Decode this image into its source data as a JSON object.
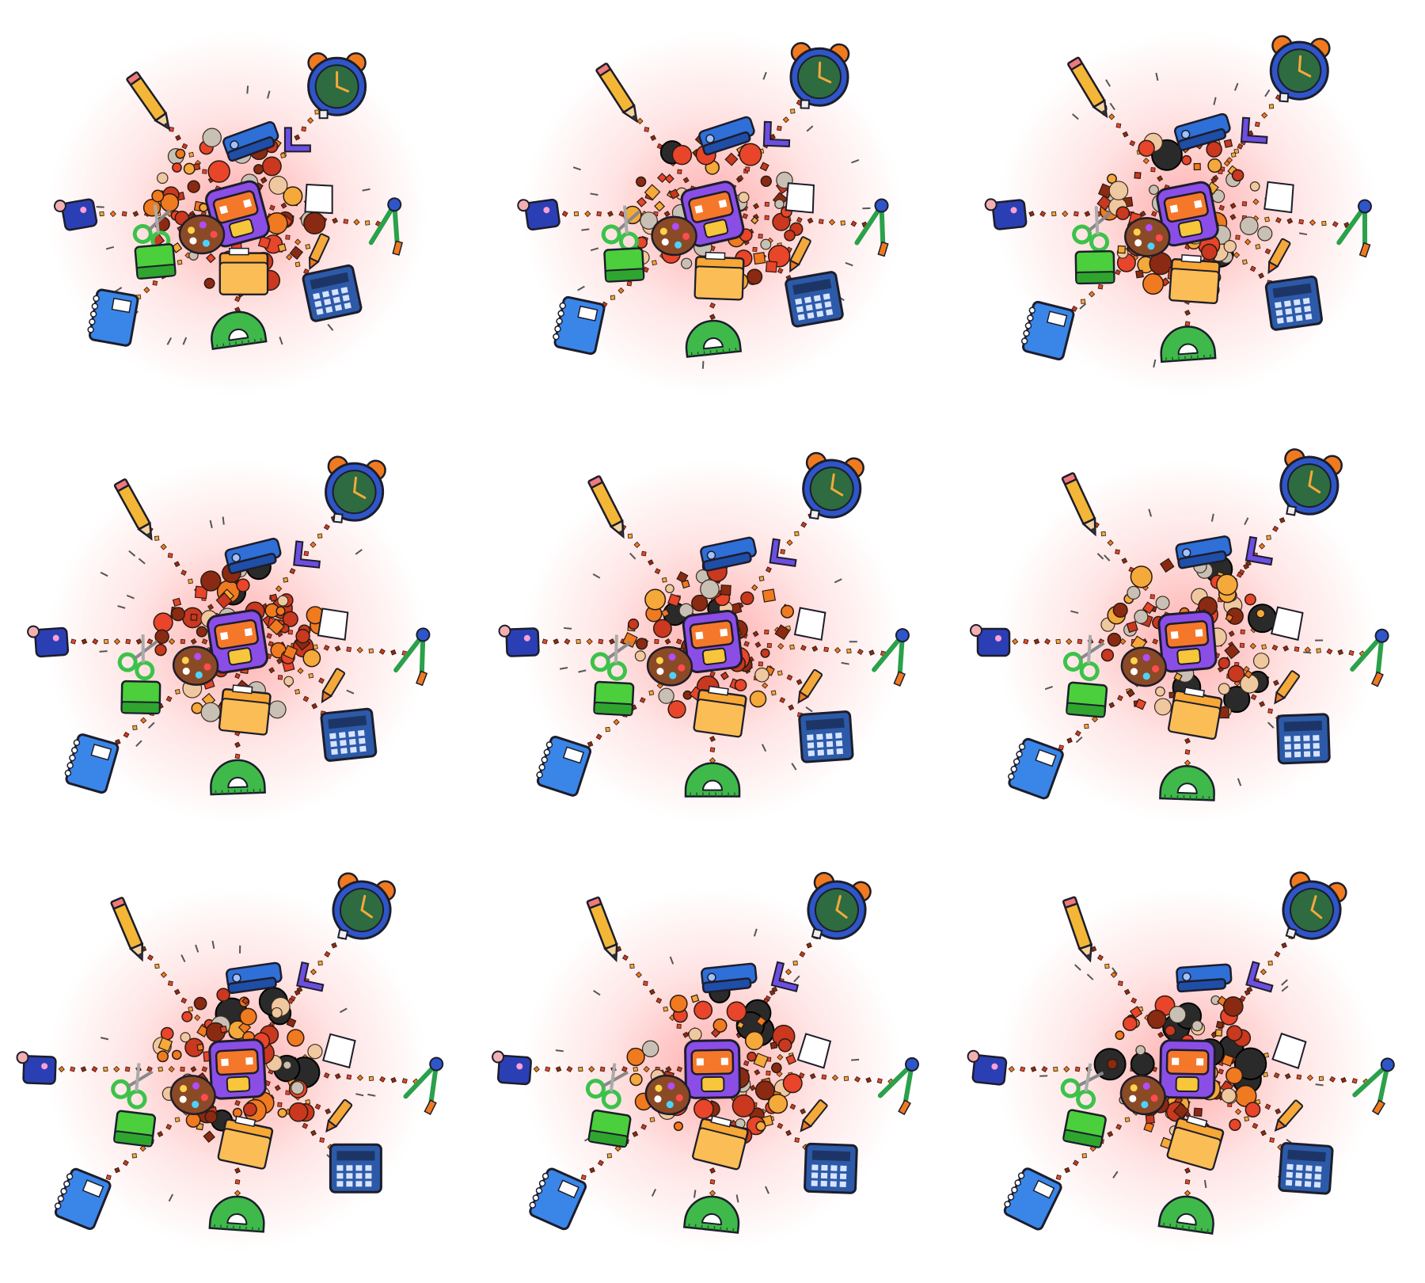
{
  "sheet": {
    "background": "#ffffff",
    "columns": 3,
    "rows": 3
  },
  "palette": {
    "glow": "#ff6b6b",
    "dots": [
      "#e8452a",
      "#f07a1f",
      "#f4a93a",
      "#c9381f",
      "#8b2a12"
    ],
    "pencil": "#f3b636",
    "clock": "#2f56c9",
    "clock_face": "#2e6b40",
    "stapler": "#2f6fd8",
    "notebook": "#3a86e8",
    "calculator": "#2c5aa8",
    "protractor": "#3fb94a",
    "folder": "#f7a735",
    "backpack": "#8a4ee6",
    "backpack_pocket": "#f5782a",
    "scissors": "#3cc24a",
    "compass": "#2aa14a",
    "sharpener": "#2b3fb5",
    "eraser": "#4bcf3c",
    "palette_wood": "#8b4a26",
    "bomb": "#2a2a2a",
    "ball": "#f0c8a0"
  },
  "items": [
    {
      "id": "pencil",
      "icon": "pencil-icon"
    },
    {
      "id": "alarm-clock",
      "icon": "alarm-clock-icon"
    },
    {
      "id": "stapler",
      "icon": "stapler-icon"
    },
    {
      "id": "set-square",
      "icon": "set-square-icon"
    },
    {
      "id": "sharpener",
      "icon": "sharpener-icon"
    },
    {
      "id": "scissors",
      "icon": "scissors-icon"
    },
    {
      "id": "compass",
      "icon": "compass-icon"
    },
    {
      "id": "eraser",
      "icon": "eraser-icon"
    },
    {
      "id": "notebook",
      "icon": "notebook-icon"
    },
    {
      "id": "protractor",
      "icon": "protractor-icon"
    },
    {
      "id": "folder",
      "icon": "folder-icon"
    },
    {
      "id": "calculator",
      "icon": "calculator-icon"
    },
    {
      "id": "backpack",
      "icon": "backpack-icon"
    },
    {
      "id": "paint-palette",
      "icon": "paint-palette-icon"
    },
    {
      "id": "paper-sheet",
      "icon": "paper-sheet-icon"
    },
    {
      "id": "crayon",
      "icon": "crayon-icon"
    }
  ],
  "frames": [
    {
      "index": 1,
      "spread": 0.8,
      "compact": 0.0
    },
    {
      "index": 2,
      "spread": 0.86,
      "compact": 0.1
    },
    {
      "index": 3,
      "spread": 0.9,
      "compact": 0.18
    },
    {
      "index": 4,
      "spread": 0.94,
      "compact": 0.3
    },
    {
      "index": 5,
      "spread": 0.96,
      "compact": 0.4
    },
    {
      "index": 6,
      "spread": 0.98,
      "compact": 0.48
    },
    {
      "index": 7,
      "spread": 1.0,
      "compact": 0.6
    },
    {
      "index": 8,
      "spread": 1.0,
      "compact": 0.7
    },
    {
      "index": 9,
      "spread": 1.0,
      "compact": 0.78
    }
  ]
}
